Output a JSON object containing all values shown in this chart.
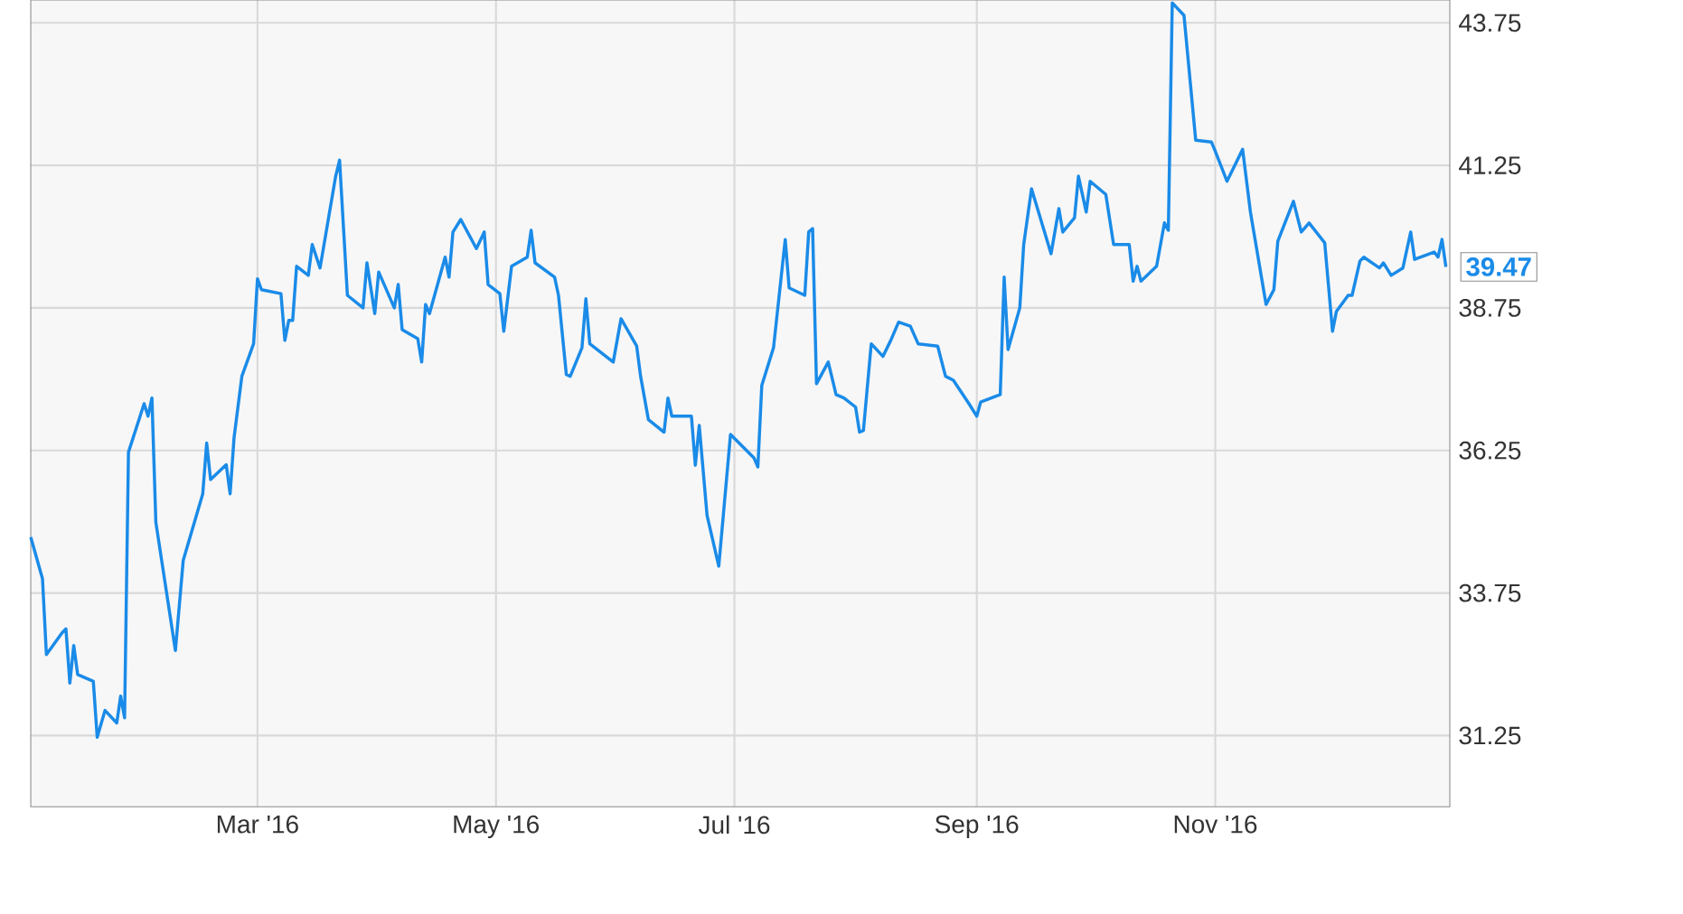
{
  "chart_data": {
    "type": "line",
    "x": [
      "2016-01-03",
      "2016-01-06",
      "2016-01-07",
      "2016-01-11",
      "2016-01-12",
      "2016-01-13",
      "2016-01-14",
      "2016-01-15",
      "2016-01-19",
      "2016-01-20",
      "2016-01-22",
      "2016-01-25",
      "2016-01-26",
      "2016-01-27",
      "2016-01-28",
      "2016-02-01",
      "2016-02-02",
      "2016-02-03",
      "2016-02-04",
      "2016-02-09",
      "2016-02-11",
      "2016-02-16",
      "2016-02-17",
      "2016-02-18",
      "2016-02-22",
      "2016-02-23",
      "2016-02-24",
      "2016-02-26",
      "2016-02-29",
      "2016-03-01",
      "2016-03-02",
      "2016-03-07",
      "2016-03-08",
      "2016-03-09",
      "2016-03-10",
      "2016-03-11",
      "2016-03-14",
      "2016-03-15",
      "2016-03-17",
      "2016-03-21",
      "2016-03-22",
      "2016-03-24",
      "2016-03-28",
      "2016-03-29",
      "2016-03-31",
      "2016-04-01",
      "2016-04-05",
      "2016-04-06",
      "2016-04-07",
      "2016-04-11",
      "2016-04-12",
      "2016-04-13",
      "2016-04-14",
      "2016-04-18",
      "2016-04-19",
      "2016-04-20",
      "2016-04-22",
      "2016-04-26",
      "2016-04-28",
      "2016-04-29",
      "2016-05-02",
      "2016-05-03",
      "2016-05-05",
      "2016-05-09",
      "2016-05-10",
      "2016-05-11",
      "2016-05-16",
      "2016-05-17",
      "2016-05-19",
      "2016-05-20",
      "2016-05-23",
      "2016-05-24",
      "2016-05-25",
      "2016-05-31",
      "2016-06-02",
      "2016-06-06",
      "2016-06-07",
      "2016-06-09",
      "2016-06-13",
      "2016-06-14",
      "2016-06-15",
      "2016-06-20",
      "2016-06-21",
      "2016-06-22",
      "2016-06-24",
      "2016-06-27",
      "2016-06-30",
      "2016-07-06",
      "2016-07-07",
      "2016-07-08",
      "2016-07-11",
      "2016-07-14",
      "2016-07-15",
      "2016-07-19",
      "2016-07-20",
      "2016-07-21",
      "2016-07-22",
      "2016-07-25",
      "2016-07-27",
      "2016-07-29",
      "2016-08-01",
      "2016-08-02",
      "2016-08-03",
      "2016-08-05",
      "2016-08-08",
      "2016-08-10",
      "2016-08-12",
      "2016-08-15",
      "2016-08-17",
      "2016-08-22",
      "2016-08-24",
      "2016-08-26",
      "2016-08-30",
      "2016-09-01",
      "2016-09-02",
      "2016-09-07",
      "2016-09-08",
      "2016-09-09",
      "2016-09-12",
      "2016-09-13",
      "2016-09-15",
      "2016-09-20",
      "2016-09-22",
      "2016-09-23",
      "2016-09-26",
      "2016-09-27",
      "2016-09-29",
      "2016-09-30",
      "2016-10-04",
      "2016-10-06",
      "2016-10-10",
      "2016-10-11",
      "2016-10-12",
      "2016-10-13",
      "2016-10-17",
      "2016-10-19",
      "2016-10-20",
      "2016-10-21",
      "2016-10-24",
      "2016-10-27",
      "2016-10-31",
      "2016-11-01",
      "2016-11-04",
      "2016-11-08",
      "2016-11-10",
      "2016-11-14",
      "2016-11-16",
      "2016-11-17",
      "2016-11-21",
      "2016-11-23",
      "2016-11-25",
      "2016-11-29",
      "2016-12-01",
      "2016-12-02",
      "2016-12-05",
      "2016-12-06",
      "2016-12-08",
      "2016-12-09",
      "2016-12-13",
      "2016-12-14",
      "2016-12-16",
      "2016-12-19",
      "2016-12-21",
      "2016-12-22",
      "2016-12-27",
      "2016-12-28",
      "2016-12-29",
      "2016-12-30"
    ],
    "series": [
      {
        "color": "#1a8be8",
        "values": [
          34.73,
          34.0,
          32.67,
          33.05,
          33.12,
          32.17,
          32.83,
          32.32,
          32.2,
          31.22,
          31.69,
          31.47,
          31.94,
          31.56,
          36.22,
          37.07,
          36.85,
          37.17,
          34.99,
          32.74,
          34.32,
          35.49,
          36.38,
          35.74,
          36.0,
          35.49,
          36.47,
          37.55,
          38.12,
          39.26,
          39.07,
          39.0,
          38.18,
          38.53,
          38.53,
          39.48,
          39.32,
          39.86,
          39.45,
          41.06,
          41.34,
          38.97,
          38.75,
          39.54,
          38.65,
          39.38,
          38.75,
          39.16,
          38.37,
          38.21,
          37.8,
          38.81,
          38.65,
          39.64,
          39.29,
          40.08,
          40.3,
          39.79,
          40.08,
          39.16,
          39.0,
          38.34,
          39.48,
          39.64,
          40.11,
          39.54,
          39.29,
          38.97,
          37.58,
          37.55,
          38.05,
          38.91,
          38.12,
          37.8,
          38.56,
          38.08,
          37.55,
          36.79,
          36.57,
          37.17,
          36.85,
          36.85,
          35.99,
          36.69,
          35.11,
          34.22,
          36.53,
          36.12,
          35.96,
          37.39,
          38.05,
          39.95,
          39.1,
          38.97,
          40.08,
          40.14,
          37.42,
          37.8,
          37.23,
          37.17,
          37.01,
          36.57,
          36.6,
          38.12,
          37.9,
          38.18,
          38.5,
          38.43,
          38.12,
          38.08,
          37.55,
          37.48,
          37.07,
          36.85,
          37.1,
          37.23,
          39.29,
          38.02,
          38.75,
          39.86,
          40.84,
          39.7,
          40.49,
          40.08,
          40.33,
          41.06,
          40.43,
          40.97,
          40.74,
          39.86,
          39.86,
          39.22,
          39.48,
          39.22,
          39.48,
          40.24,
          40.11,
          44.1,
          43.88,
          41.69,
          41.66,
          41.5,
          40.97,
          41.53,
          40.43,
          38.81,
          39.07,
          39.92,
          40.62,
          40.08,
          40.24,
          39.89,
          38.34,
          38.69,
          38.97,
          38.97,
          39.57,
          39.64,
          39.45,
          39.54,
          39.32,
          39.45,
          40.08,
          39.6,
          39.73,
          39.64,
          39.95,
          39.47
        ]
      }
    ],
    "xlim": [
      "2016-01-03",
      "2016-12-31"
    ],
    "xticks": [
      {
        "value": "2016-03-01",
        "label": "Mar '16"
      },
      {
        "value": "2016-05-01",
        "label": "May '16"
      },
      {
        "value": "2016-07-01",
        "label": "Jul '16"
      },
      {
        "value": "2016-09-01",
        "label": "Sep '16"
      },
      {
        "value": "2016-11-01",
        "label": "Nov '16"
      }
    ],
    "ylim": [
      30,
      44.15
    ],
    "yticks": [
      31.25,
      33.75,
      36.25,
      38.75,
      41.25,
      43.75
    ],
    "grid": true,
    "annotations": [
      {
        "text": "39.47",
        "x": "2016-12-30",
        "y": 39.47
      }
    ]
  }
}
